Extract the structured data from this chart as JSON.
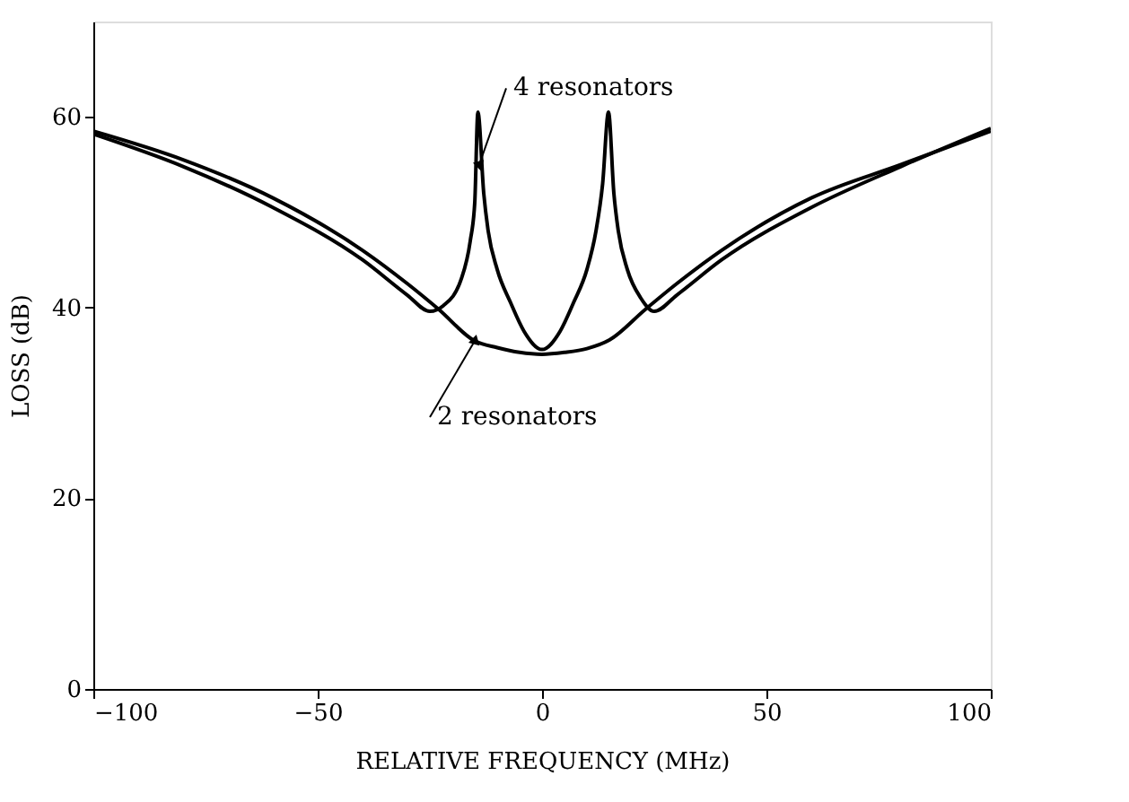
{
  "chart_data": {
    "type": "line",
    "xlabel": "RELATIVE FREQUENCY (MHz)",
    "ylabel": "LOSS (dB)",
    "xlim": [
      -100,
      100
    ],
    "xticks": [
      -100,
      -50,
      0,
      50,
      100
    ],
    "ylim": [
      0,
      70
    ],
    "yticks": [
      0,
      20,
      40,
      60
    ],
    "grid": false,
    "marker": "none",
    "line_style": "solid",
    "series": [
      {
        "color": "#000000",
        "x": [
          -100,
          -80,
          -60,
          -40,
          -30,
          -23,
          -15,
          -10,
          -5,
          0,
          5,
          10,
          15,
          23,
          30,
          40,
          60,
          80,
          100
        ],
        "values": [
          58.5,
          55.5,
          51.5,
          46,
          42.5,
          39.8,
          36.5,
          35.8,
          35.3,
          35.1,
          35.3,
          35.7,
          36.6,
          39.8,
          42.5,
          46,
          51.5,
          55,
          58.5
        ]
      },
      {
        "color": "#000000",
        "x": [
          -100,
          -80,
          -60,
          -40,
          -30,
          -25,
          -22,
          -18,
          -16,
          -15,
          -14.3,
          -13,
          -12,
          -10,
          -7,
          -4,
          0,
          4,
          7,
          10,
          12,
          13.5,
          14.8,
          16,
          17,
          19,
          22,
          25,
          30,
          40,
          60,
          80,
          100
        ],
        "values": [
          58.2,
          54.8,
          50.5,
          45,
          41.3,
          39.6,
          40.2,
          43,
          47,
          51,
          60.5,
          52,
          48,
          44,
          40.5,
          37.5,
          35.6,
          37.5,
          40.5,
          44,
          48,
          53,
          60.5,
          52,
          48,
          44,
          41,
          39.6,
          41.3,
          45,
          50.5,
          54.8,
          58.8
        ]
      }
    ],
    "annotations": [
      {
        "text": "4 resonators",
        "x": -14,
        "y": 55
      },
      {
        "text": "2 resonators",
        "x": -15,
        "y": 36.5
      }
    ]
  }
}
